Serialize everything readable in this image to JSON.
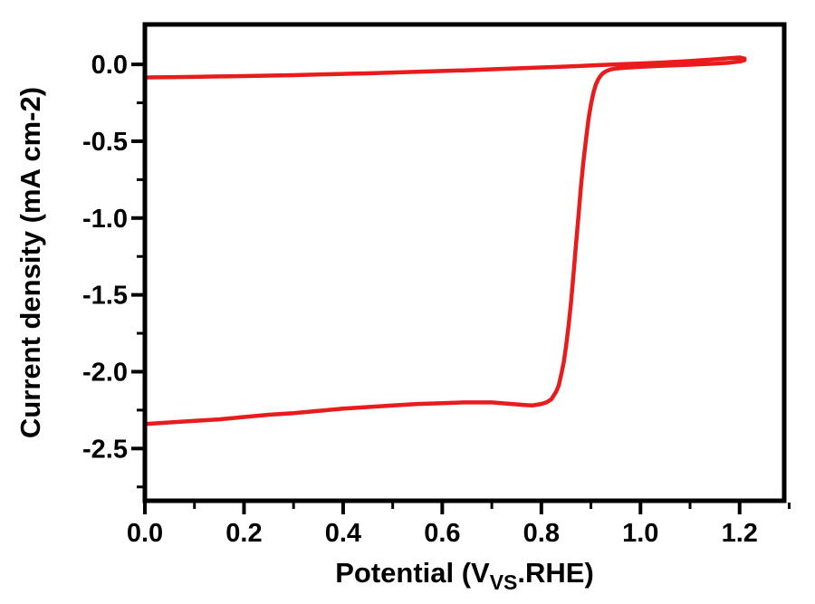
{
  "figure": {
    "background_color": "#ffffff",
    "axis_color": "#000000",
    "curve_color": "#e81c1c"
  },
  "chart_data": {
    "type": "line",
    "title": "",
    "xlabel": "Potential (V_VS.RHE)",
    "xlabel_parts": {
      "prefix": "Potential (V",
      "subscript": "VS",
      "suffix": ".RHE)"
    },
    "ylabel": "Current density (mA cm-2)",
    "xlim": [
      0.0,
      1.29
    ],
    "ylim": [
      -2.84,
      0.26
    ],
    "grid": false,
    "legend": "none",
    "x_ticks": {
      "values": [
        0.0,
        0.2,
        0.4,
        0.6,
        0.8,
        1.0,
        1.2
      ],
      "labels": [
        "0.0",
        "0.2",
        "0.4",
        "0.6",
        "0.8",
        "1.0",
        "1.2"
      ],
      "minor": [
        0.1,
        0.3,
        0.5,
        0.7,
        0.9,
        1.1,
        1.3
      ]
    },
    "y_ticks": {
      "values": [
        0.0,
        -0.5,
        -1.0,
        -1.5,
        -2.0,
        -2.5
      ],
      "labels": [
        "0.0",
        "-0.5",
        "-1.0",
        "-1.5",
        "-2.0",
        "-2.5"
      ],
      "minor": [
        -0.25,
        -0.75,
        -1.25,
        -1.75,
        -2.25,
        -2.75
      ]
    },
    "series": [
      {
        "name": "red-curve",
        "color": "#e81c1c",
        "line_width": 4.5,
        "points": [
          [
            0.0,
            -0.085
          ],
          [
            0.05,
            -0.083
          ],
          [
            0.1,
            -0.081
          ],
          [
            0.15,
            -0.078
          ],
          [
            0.2,
            -0.076
          ],
          [
            0.25,
            -0.073
          ],
          [
            0.3,
            -0.07
          ],
          [
            0.35,
            -0.066
          ],
          [
            0.4,
            -0.062
          ],
          [
            0.45,
            -0.058
          ],
          [
            0.5,
            -0.053
          ],
          [
            0.55,
            -0.048
          ],
          [
            0.6,
            -0.043
          ],
          [
            0.65,
            -0.038
          ],
          [
            0.7,
            -0.032
          ],
          [
            0.75,
            -0.026
          ],
          [
            0.8,
            -0.02
          ],
          [
            0.85,
            -0.014
          ],
          [
            0.9,
            -0.007
          ],
          [
            0.95,
            0.0
          ],
          [
            1.0,
            0.006
          ],
          [
            1.05,
            0.013
          ],
          [
            1.1,
            0.022
          ],
          [
            1.15,
            0.033
          ],
          [
            1.18,
            0.04
          ],
          [
            1.2,
            0.045
          ],
          [
            1.21,
            0.038
          ],
          [
            1.21,
            0.028
          ],
          [
            1.2,
            0.019
          ],
          [
            1.18,
            0.011
          ],
          [
            1.15,
            0.005
          ],
          [
            1.1,
            -0.002
          ],
          [
            1.05,
            -0.008
          ],
          [
            1.0,
            -0.015
          ],
          [
            0.97,
            -0.021
          ],
          [
            0.95,
            -0.027
          ],
          [
            0.94,
            -0.033
          ],
          [
            0.93,
            -0.045
          ],
          [
            0.925,
            -0.056
          ],
          [
            0.92,
            -0.072
          ],
          [
            0.915,
            -0.096
          ],
          [
            0.91,
            -0.13
          ],
          [
            0.905,
            -0.185
          ],
          [
            0.9,
            -0.26
          ],
          [
            0.895,
            -0.36
          ],
          [
            0.89,
            -0.49
          ],
          [
            0.885,
            -0.63
          ],
          [
            0.88,
            -0.79
          ],
          [
            0.875,
            -0.98
          ],
          [
            0.87,
            -1.17
          ],
          [
            0.865,
            -1.36
          ],
          [
            0.86,
            -1.54
          ],
          [
            0.855,
            -1.7
          ],
          [
            0.85,
            -1.83
          ],
          [
            0.845,
            -1.94
          ],
          [
            0.84,
            -2.02
          ],
          [
            0.835,
            -2.09
          ],
          [
            0.83,
            -2.13
          ],
          [
            0.82,
            -2.18
          ],
          [
            0.81,
            -2.2
          ],
          [
            0.8,
            -2.21
          ],
          [
            0.79,
            -2.215
          ],
          [
            0.78,
            -2.22
          ],
          [
            0.76,
            -2.215
          ],
          [
            0.74,
            -2.21
          ],
          [
            0.72,
            -2.205
          ],
          [
            0.7,
            -2.2
          ],
          [
            0.67,
            -2.2
          ],
          [
            0.64,
            -2.2
          ],
          [
            0.6,
            -2.205
          ],
          [
            0.55,
            -2.21
          ],
          [
            0.5,
            -2.22
          ],
          [
            0.45,
            -2.23
          ],
          [
            0.4,
            -2.24
          ],
          [
            0.35,
            -2.255
          ],
          [
            0.3,
            -2.27
          ],
          [
            0.25,
            -2.28
          ],
          [
            0.2,
            -2.295
          ],
          [
            0.15,
            -2.31
          ],
          [
            0.1,
            -2.32
          ],
          [
            0.05,
            -2.33
          ],
          [
            0.0,
            -2.34
          ]
        ]
      }
    ]
  }
}
